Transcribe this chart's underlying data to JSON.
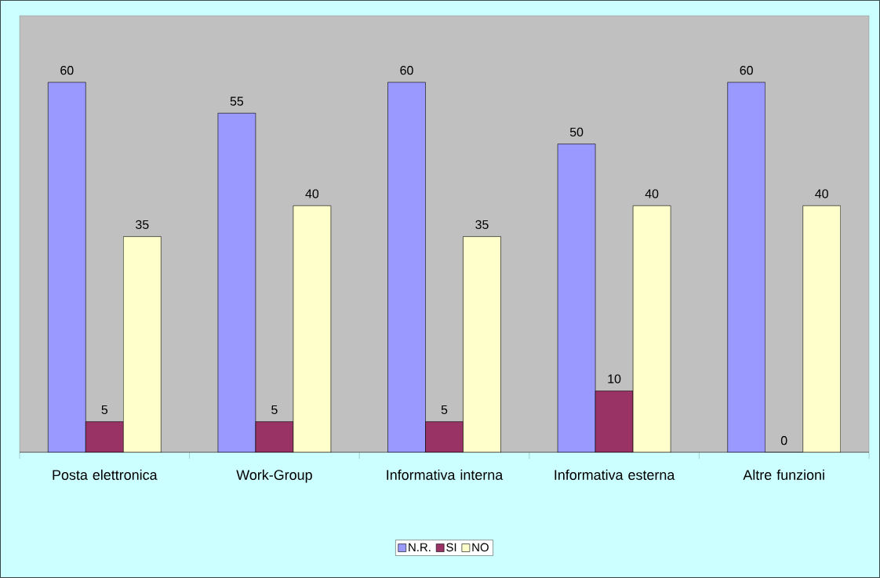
{
  "chart_data": {
    "type": "bar",
    "categories": [
      "Posta elettronica",
      "Work-Group",
      "Informativa interna",
      "Informativa esterna",
      "Altre funzioni"
    ],
    "series": [
      {
        "name": "N.R.",
        "color": "#9999ff",
        "values": [
          60,
          55,
          60,
          50,
          60
        ]
      },
      {
        "name": "SI",
        "color": "#993366",
        "values": [
          5,
          5,
          5,
          10,
          0
        ]
      },
      {
        "name": "NO",
        "color": "#ffffcc",
        "values": [
          35,
          40,
          35,
          40,
          40
        ]
      }
    ],
    "data_labels": true,
    "legend": "bottom"
  }
}
